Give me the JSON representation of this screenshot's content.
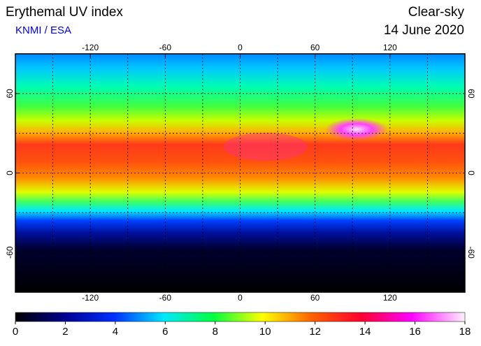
{
  "header": {
    "title": "Erythemal UV index",
    "source": "KNMI / ESA",
    "condition": "Clear-sky",
    "date": "14 June 2020"
  },
  "map": {
    "xlim": [
      -180,
      180
    ],
    "ylim": [
      -90,
      90
    ],
    "xticks": [
      -120,
      -60,
      0,
      60,
      120
    ],
    "yticks": [
      60,
      0,
      -60
    ],
    "grid": true
  },
  "colorbar": {
    "lim": [
      0,
      18
    ],
    "ticks": [
      0,
      2,
      4,
      6,
      8,
      10,
      12,
      14,
      16,
      18
    ]
  }
}
